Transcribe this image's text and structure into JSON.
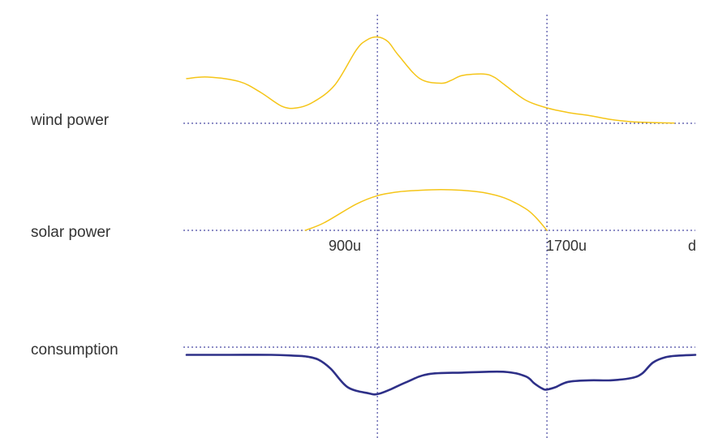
{
  "chart_data": {
    "type": "line",
    "title": "",
    "x_range": [
      0,
      2400
    ],
    "row_labels": [
      "wind power",
      "solar power",
      "consumption"
    ],
    "markers": [
      {
        "x": 900,
        "label": "900u"
      },
      {
        "x": 1700,
        "label": "1700u"
      },
      {
        "x": 2400,
        "label": "d"
      }
    ],
    "grid": false,
    "colors": {
      "generation": "#f5c518",
      "consumption": "#2e3088",
      "guides": "#4b4ba3"
    },
    "series": [
      {
        "row": 0,
        "kind": "generation",
        "x": [
          0,
          100,
          250,
          350,
          450,
          520,
          600,
          700,
          800,
          850,
          900,
          950,
          1000,
          1100,
          1200,
          1250,
          1300,
          1400,
          1450,
          1500,
          1600,
          1700,
          1800,
          1900,
          2000,
          2100,
          2200,
          2300
        ],
        "values": [
          58,
          60,
          54,
          40,
          22,
          20,
          28,
          50,
          95,
          108,
          112,
          106,
          88,
          58,
          52,
          56,
          62,
          64,
          60,
          50,
          30,
          20,
          14,
          10,
          5,
          2,
          1,
          0.3
        ]
      },
      {
        "row": 1,
        "kind": "generation",
        "x": [
          560,
          650,
          800,
          900,
          1000,
          1100,
          1200,
          1300,
          1400,
          1500,
          1600,
          1650,
          1700
        ],
        "values": [
          0,
          10,
          34,
          45,
          50,
          52,
          53,
          52,
          49,
          42,
          28,
          16,
          0
        ]
      },
      {
        "row": 2,
        "kind": "consumption",
        "x": [
          0,
          200,
          400,
          500,
          560,
          620,
          680,
          760,
          860,
          900,
          960,
          1040,
          1140,
          1300,
          1500,
          1600,
          1640,
          1680,
          1700,
          1740,
          1800,
          1900,
          2000,
          2100,
          2150,
          2200,
          2260,
          2320,
          2400
        ],
        "values": [
          -10,
          -10,
          -10,
          -11,
          -12,
          -16,
          -28,
          -52,
          -60,
          -61,
          -55,
          -45,
          -35,
          -33,
          -32,
          -38,
          -47,
          -54,
          -55,
          -52,
          -45,
          -43,
          -43,
          -40,
          -34,
          -20,
          -13,
          -11,
          -10
        ]
      }
    ]
  }
}
